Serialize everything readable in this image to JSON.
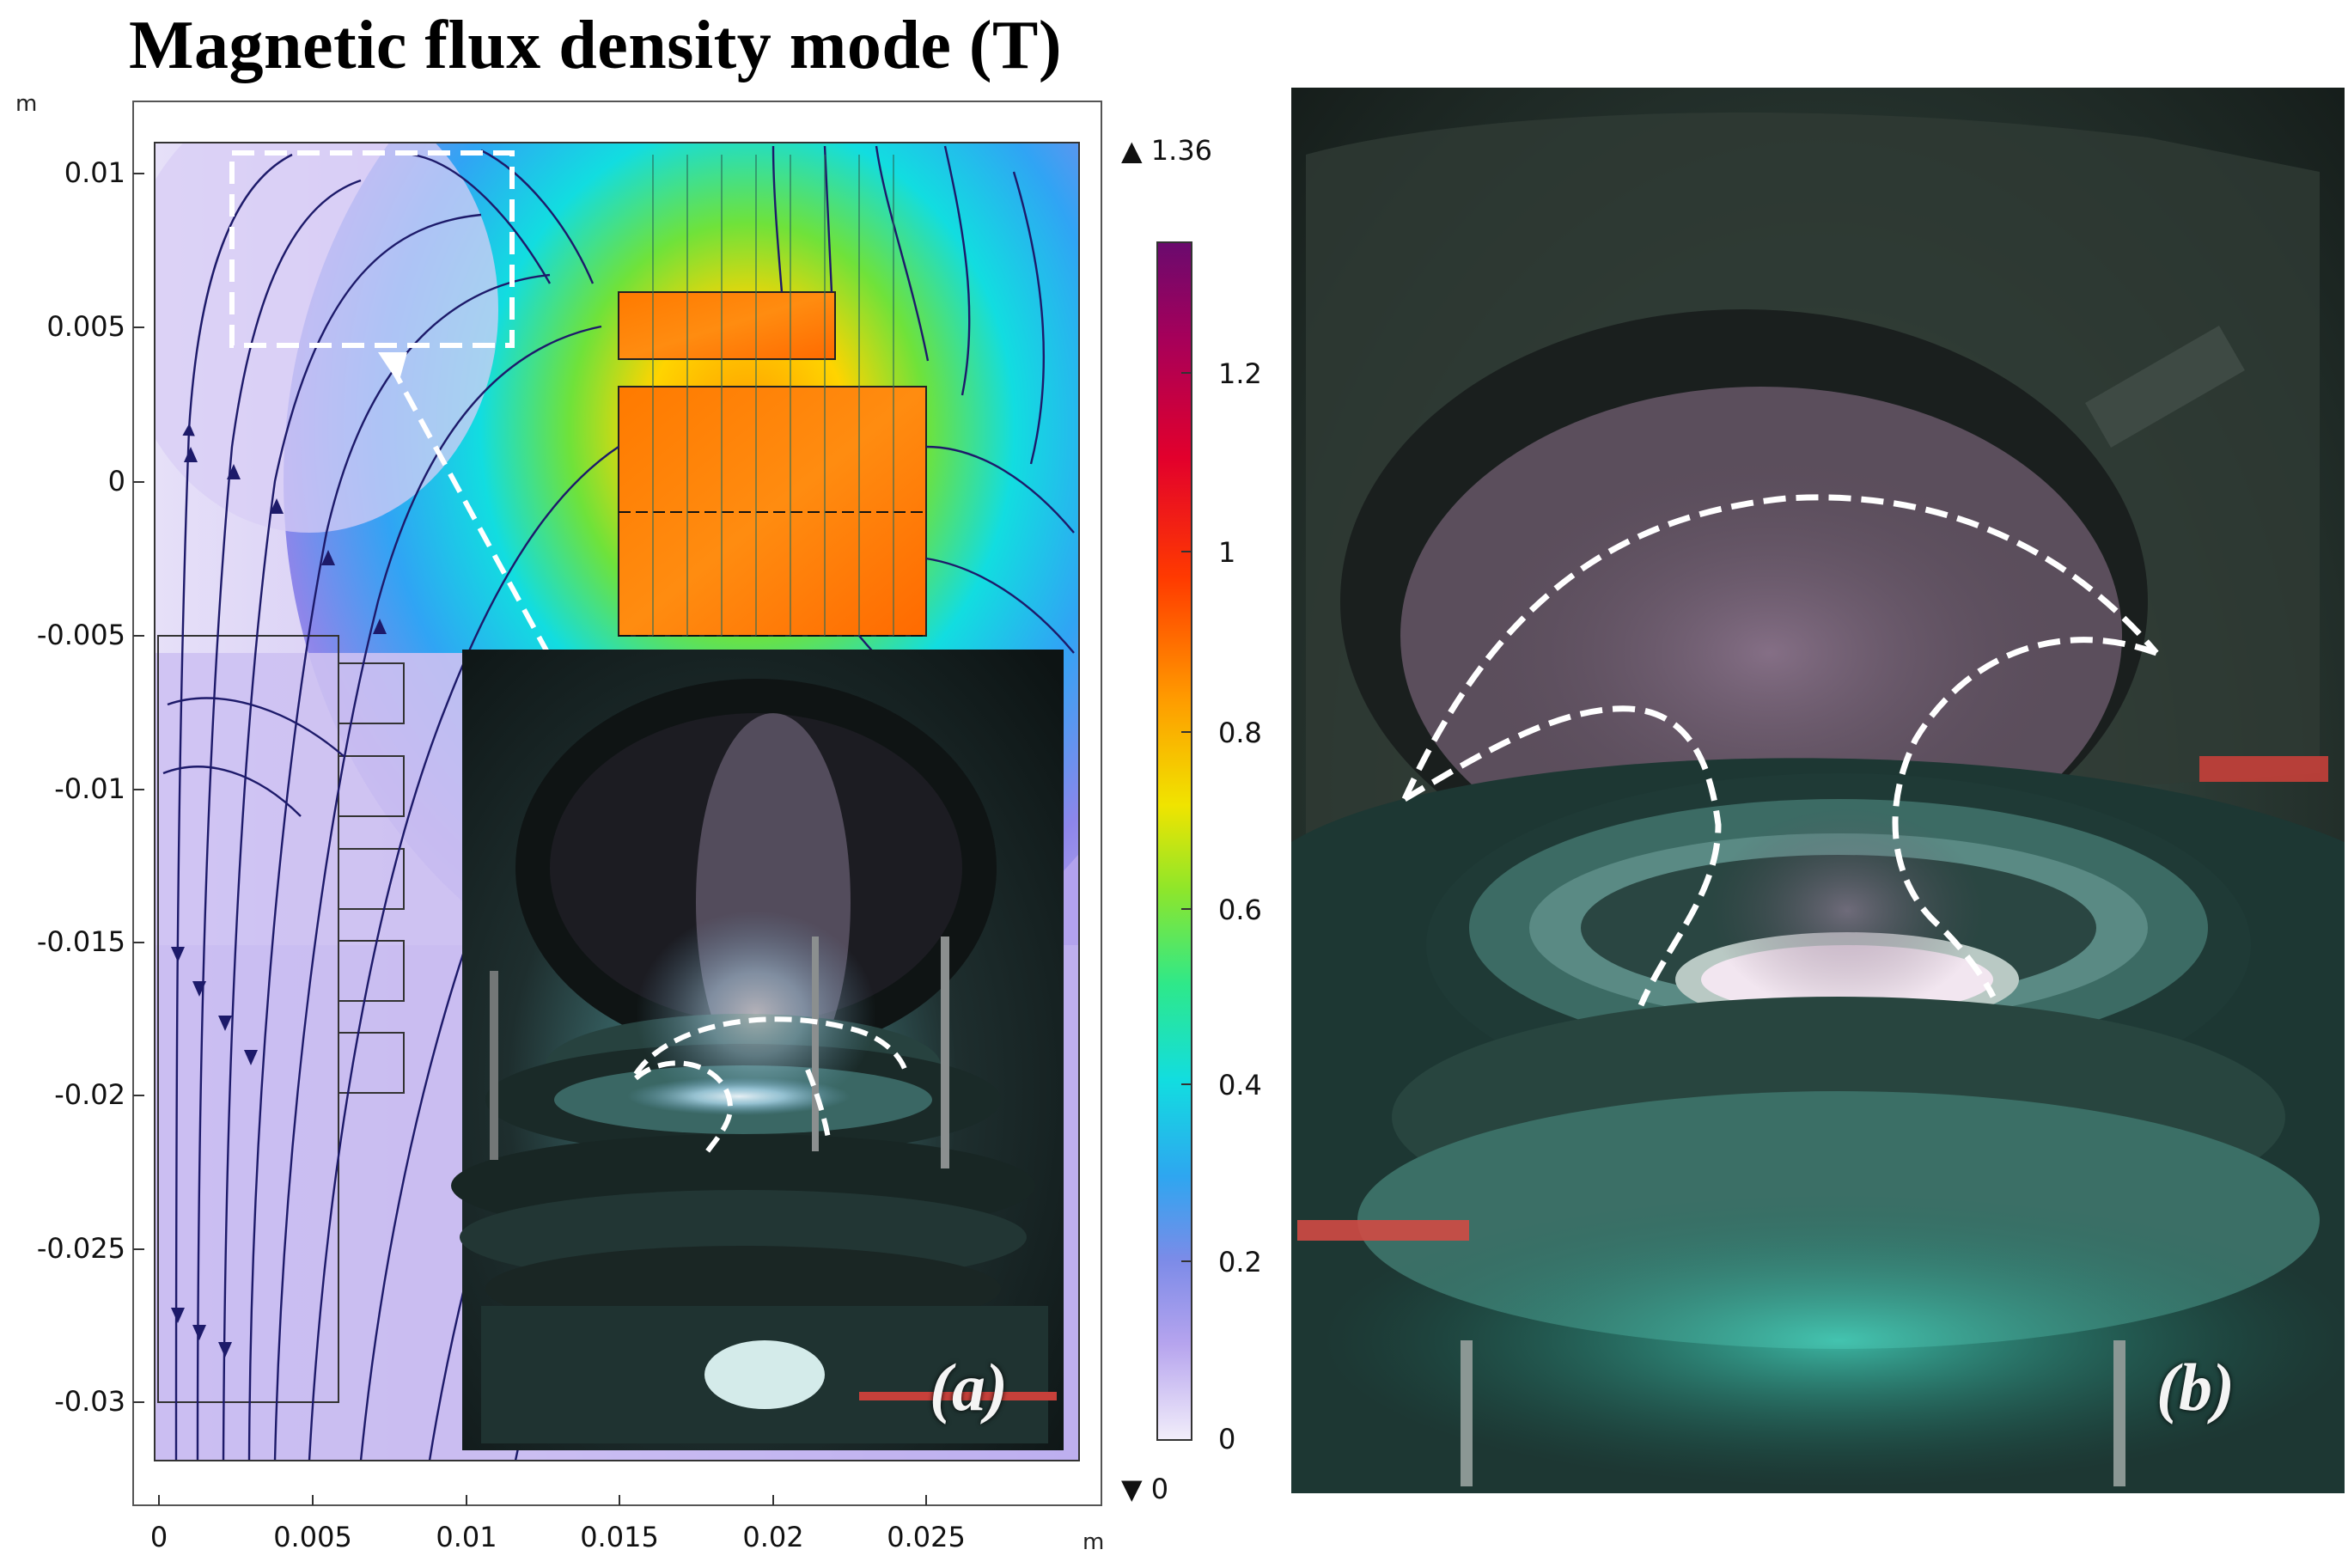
{
  "figure": {
    "title": "Magnetic flux density mode (T)",
    "axis_units": {
      "y": "m",
      "x": "m"
    },
    "y_ticks": [
      "0.01",
      "0.005",
      "0",
      "-0.005",
      "-0.01",
      "-0.015",
      "-0.02",
      "-0.025",
      "-0.03"
    ],
    "x_ticks": [
      "0",
      "0.005",
      "0.01",
      "0.015",
      "0.02",
      "0.025"
    ],
    "colorbar": {
      "max_label": "▲ 1.36",
      "min_label": "▼ 0",
      "ticks": [
        "1.2",
        "1",
        "0.8",
        "0.6",
        "0.4",
        "0.2",
        "0"
      ]
    },
    "panel_a_label": "(a)",
    "panel_b_label": "(b)"
  },
  "chart_data": {
    "type": "heatmap",
    "title": "Magnetic flux density mode (T)",
    "xlabel": "m",
    "ylabel": "m",
    "xlim": [
      0,
      0.03
    ],
    "ylim": [
      -0.032,
      0.011
    ],
    "colorbar_range": [
      0,
      1.36
    ],
    "colormap": [
      "#f2eefa",
      "#9f8ae8",
      "#3fa9f5",
      "#18e8d8",
      "#7fe03c",
      "#f5e400",
      "#ff8a00",
      "#ff1a00",
      "#b4004a",
      "#6a0a6e"
    ],
    "field_lines": "streamlines shown",
    "annotations": [
      "dashed white inset box",
      "dashed arrow to photo",
      "panel (a) photo inset",
      "panel (b) photo"
    ]
  }
}
